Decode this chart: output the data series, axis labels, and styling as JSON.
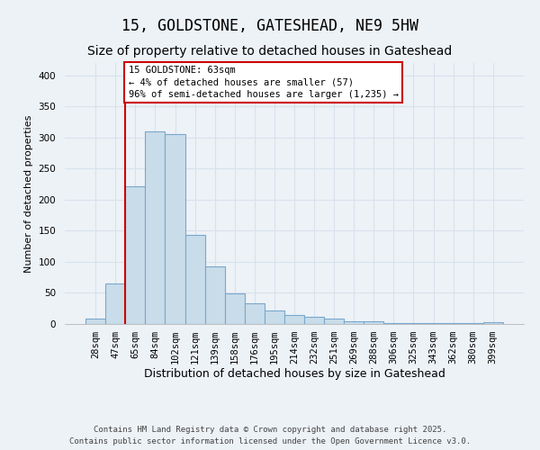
{
  "title": "15, GOLDSTONE, GATESHEAD, NE9 5HW",
  "subtitle": "Size of property relative to detached houses in Gateshead",
  "xlabel": "Distribution of detached houses by size in Gateshead",
  "ylabel": "Number of detached properties",
  "footer_line1": "Contains HM Land Registry data © Crown copyright and database right 2025.",
  "footer_line2": "Contains public sector information licensed under the Open Government Licence v3.0.",
  "bar_labels": [
    "28sqm",
    "47sqm",
    "65sqm",
    "84sqm",
    "102sqm",
    "121sqm",
    "139sqm",
    "158sqm",
    "176sqm",
    "195sqm",
    "214sqm",
    "232sqm",
    "251sqm",
    "269sqm",
    "288sqm",
    "306sqm",
    "325sqm",
    "343sqm",
    "362sqm",
    "380sqm",
    "399sqm"
  ],
  "bar_values": [
    9,
    65,
    222,
    310,
    305,
    144,
    92,
    49,
    33,
    22,
    15,
    11,
    9,
    4,
    4,
    2,
    2,
    1,
    1,
    1,
    3
  ],
  "bar_color": "#c9dcea",
  "bar_edge_color": "#7aa8cc",
  "annotation_text": "15 GOLDSTONE: 63sqm\n← 4% of detached houses are smaller (57)\n96% of semi-detached houses are larger (1,235) →",
  "vline_x": 1.5,
  "vline_color": "#cc0000",
  "annotation_box_edge": "#cc0000",
  "ylim": [
    0,
    420
  ],
  "yticks": [
    0,
    50,
    100,
    150,
    200,
    250,
    300,
    350,
    400
  ],
  "background_color": "#edf2f7",
  "grid_color": "#d8e2ec",
  "title_fontsize": 12,
  "subtitle_fontsize": 10,
  "xlabel_fontsize": 9,
  "ylabel_fontsize": 8,
  "tick_fontsize": 7.5,
  "annotation_fontsize": 7.5,
  "footer_fontsize": 6.5
}
